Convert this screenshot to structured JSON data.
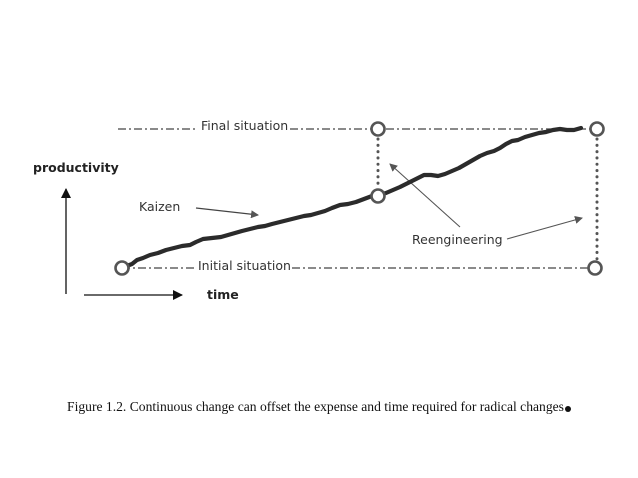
{
  "labels": {
    "final_situation": "Final situation",
    "initial_situation": "Initial situation",
    "productivity": "productivity",
    "time": "time",
    "kaizen": "Kaizen",
    "reengineering": "Reengineering"
  },
  "caption": "Figure 1.2. Continuous change can offset the expense and time required for radical changes"
}
